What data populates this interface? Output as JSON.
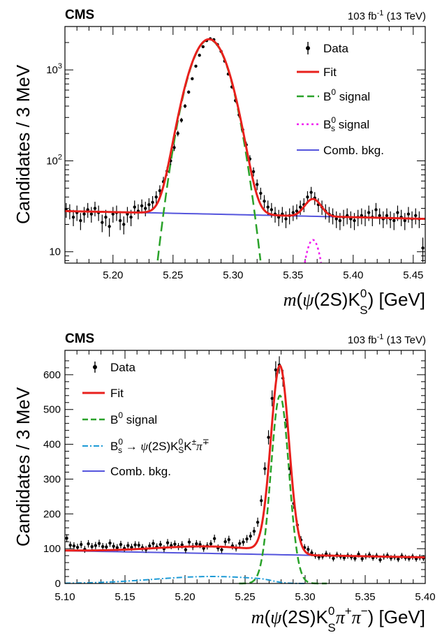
{
  "chart_data": [
    {
      "type": "line",
      "yscale": "log",
      "experiment": "CMS",
      "lumi": {
        "value": "103",
        "unit": "fb",
        "exp": "-1",
        "energy": "(13 TeV)"
      },
      "ylabel": "Candidates / 3 MeV",
      "xlabel": {
        "m": "m",
        "open": "(",
        "psi": "ψ",
        "mid": "(2S)K",
        "sup": "0",
        "sub": "S",
        "close": ")",
        "unit": " [GeV]"
      },
      "xlim": [
        5.16,
        5.46
      ],
      "ylim": [
        7.5,
        3000
      ],
      "x_ticks": [
        "5.20",
        "5.25",
        "5.30",
        "5.35",
        "5.40",
        "5.45"
      ],
      "y_ticks": [
        {
          "value": 10,
          "label": "10",
          "sup": ""
        },
        {
          "value": 100,
          "label": "10",
          "sup": "2"
        },
        {
          "value": 1000,
          "label": "10",
          "sup": "3"
        }
      ],
      "legend": {
        "placement": "top-right",
        "data": "Data",
        "fit": "Fit",
        "b0_base": "B",
        "b0_sup": "0",
        "b0_rest": " signal",
        "bs_base": "B",
        "bs_sup": "0",
        "bs_sub": "s",
        "bs_rest": " signal",
        "comb": "Comb. bkg."
      },
      "colors": {
        "fit": "#e8201c",
        "b0": "#2aa22a",
        "bs": "#f01cf0",
        "comb": "#5555dd",
        "data": "#000000"
      },
      "model": {
        "bkg": {
          "a": 28,
          "b": -16.67,
          "x0": 5.16
        },
        "b0": {
          "amp": 2150,
          "mu": 5.28,
          "sigma": 0.0128
        },
        "bs": {
          "amp": 13.5,
          "mu": 5.3665,
          "sigma": 0.0063
        }
      },
      "data_points": [
        [
          5.161,
          29
        ],
        [
          5.164,
          28
        ],
        [
          5.167,
          24
        ],
        [
          5.17,
          27
        ],
        [
          5.173,
          22
        ],
        [
          5.176,
          26
        ],
        [
          5.179,
          29
        ],
        [
          5.182,
          26
        ],
        [
          5.185,
          30
        ],
        [
          5.188,
          27
        ],
        [
          5.191,
          21
        ],
        [
          5.194,
          24
        ],
        [
          5.197,
          19
        ],
        [
          5.2,
          26
        ],
        [
          5.203,
          27
        ],
        [
          5.206,
          22
        ],
        [
          5.209,
          20
        ],
        [
          5.212,
          26
        ],
        [
          5.215,
          24
        ],
        [
          5.218,
          31
        ],
        [
          5.221,
          28
        ],
        [
          5.224,
          32
        ],
        [
          5.227,
          30
        ],
        [
          5.23,
          33
        ],
        [
          5.233,
          35
        ],
        [
          5.236,
          40
        ],
        [
          5.239,
          47
        ],
        [
          5.242,
          59
        ],
        [
          5.245,
          77
        ],
        [
          5.248,
          100
        ],
        [
          5.251,
          140
        ],
        [
          5.254,
          200
        ],
        [
          5.257,
          280
        ],
        [
          5.26,
          400
        ],
        [
          5.263,
          570
        ],
        [
          5.266,
          800
        ],
        [
          5.269,
          1100
        ],
        [
          5.272,
          1450
        ],
        [
          5.275,
          1800
        ],
        [
          5.278,
          2100
        ],
        [
          5.281,
          2200
        ],
        [
          5.284,
          2150
        ],
        [
          5.287,
          1900
        ],
        [
          5.29,
          1600
        ],
        [
          5.293,
          1250
        ],
        [
          5.296,
          900
        ],
        [
          5.299,
          650
        ],
        [
          5.302,
          460
        ],
        [
          5.305,
          320
        ],
        [
          5.308,
          220
        ],
        [
          5.311,
          150
        ],
        [
          5.314,
          105
        ],
        [
          5.317,
          76
        ],
        [
          5.32,
          55
        ],
        [
          5.323,
          44
        ],
        [
          5.326,
          36
        ],
        [
          5.329,
          31
        ],
        [
          5.332,
          29
        ],
        [
          5.335,
          26
        ],
        [
          5.338,
          24
        ],
        [
          5.341,
          26
        ],
        [
          5.344,
          23
        ],
        [
          5.347,
          25
        ],
        [
          5.35,
          27
        ],
        [
          5.353,
          28
        ],
        [
          5.356,
          31
        ],
        [
          5.359,
          33
        ],
        [
          5.362,
          40
        ],
        [
          5.365,
          45
        ],
        [
          5.368,
          39
        ],
        [
          5.371,
          33
        ],
        [
          5.374,
          31
        ],
        [
          5.377,
          28
        ],
        [
          5.38,
          26
        ],
        [
          5.383,
          25
        ],
        [
          5.386,
          23
        ],
        [
          5.389,
          22
        ],
        [
          5.392,
          24
        ],
        [
          5.395,
          25
        ],
        [
          5.398,
          23
        ],
        [
          5.401,
          22
        ],
        [
          5.404,
          24
        ],
        [
          5.407,
          25
        ],
        [
          5.41,
          24
        ],
        [
          5.413,
          27
        ],
        [
          5.416,
          24
        ],
        [
          5.419,
          29
        ],
        [
          5.422,
          25
        ],
        [
          5.425,
          23
        ],
        [
          5.428,
          25
        ],
        [
          5.431,
          23
        ],
        [
          5.434,
          22
        ],
        [
          5.437,
          27
        ],
        [
          5.44,
          24
        ],
        [
          5.443,
          22
        ],
        [
          5.446,
          26
        ],
        [
          5.449,
          23
        ],
        [
          5.452,
          25
        ],
        [
          5.455,
          23
        ],
        [
          5.458,
          11
        ]
      ]
    },
    {
      "type": "line",
      "yscale": "linear",
      "experiment": "CMS",
      "lumi": {
        "value": "103",
        "unit": "fb",
        "exp": "-1",
        "energy": "(13 TeV)"
      },
      "ylabel": "Candidates / 3 MeV",
      "xlabel": {
        "m": "m",
        "open": "(",
        "psi": "ψ",
        "mid": "(2S)K",
        "sup": "0",
        "sub": "S",
        "tail": "π",
        "tail_sup1": "+",
        "tail2": "π",
        "tail_sup2": "−",
        "close": ")",
        "unit": " [GeV]"
      },
      "xlim": [
        5.1,
        5.4
      ],
      "ylim": [
        0,
        670
      ],
      "x_ticks": [
        "5.10",
        "5.15",
        "5.20",
        "5.25",
        "5.30",
        "5.35",
        "5.40"
      ],
      "y_ticks": [
        {
          "value": 0,
          "label": "0"
        },
        {
          "value": 100,
          "label": "100"
        },
        {
          "value": 200,
          "label": "200"
        },
        {
          "value": 300,
          "label": "300"
        },
        {
          "value": 400,
          "label": "400"
        },
        {
          "value": 500,
          "label": "500"
        },
        {
          "value": 600,
          "label": "600"
        }
      ],
      "legend": {
        "placement": "top-left",
        "data": "Data",
        "fit": "Fit",
        "b0_base": "B",
        "b0_sup": "0",
        "b0_rest": " signal",
        "bs_base": "B",
        "bs_sup": "0",
        "bs_sub": "s",
        "bs_rest": " → ",
        "bs_psi": "ψ",
        "bs_mid": "(2S)K",
        "bs_k_sup": "0",
        "bs_k_sub": "S",
        "bs_kk": "K",
        "bs_kk_sup": "±",
        "bs_pi": "π",
        "bs_pi_sup": "∓",
        "comb": "Comb. bkg."
      },
      "colors": {
        "fit": "#e8201c",
        "b0": "#2aa22a",
        "bs": "#1c9ad6",
        "comb": "#5555dd",
        "data": "#000000"
      },
      "model": {
        "bkg": {
          "a": 94,
          "b": -63.3,
          "x0": 5.1
        },
        "b0": {
          "amp": 540,
          "mu": 5.279,
          "sigma": 0.0075
        },
        "bs": {
          "amp": 20,
          "mu": 5.222,
          "sigma": 0.048,
          "cut": 5.262,
          "fall": 0.012
        }
      },
      "data_points": [
        [
          5.1015,
          130
        ],
        [
          5.1045,
          110
        ],
        [
          5.1075,
          108
        ],
        [
          5.1105,
          104
        ],
        [
          5.1135,
          112
        ],
        [
          5.1165,
          98
        ],
        [
          5.1195,
          114
        ],
        [
          5.1225,
          106
        ],
        [
          5.1255,
          109
        ],
        [
          5.1285,
          115
        ],
        [
          5.1315,
          106
        ],
        [
          5.1345,
          105
        ],
        [
          5.1375,
          116
        ],
        [
          5.1405,
          107
        ],
        [
          5.1435,
          103
        ],
        [
          5.1465,
          112
        ],
        [
          5.1495,
          101
        ],
        [
          5.1525,
          109
        ],
        [
          5.1555,
          104
        ],
        [
          5.1585,
          111
        ],
        [
          5.1615,
          110
        ],
        [
          5.1645,
          103
        ],
        [
          5.1675,
          98
        ],
        [
          5.1705,
          108
        ],
        [
          5.1735,
          115
        ],
        [
          5.1765,
          105
        ],
        [
          5.1795,
          112
        ],
        [
          5.1825,
          100
        ],
        [
          5.1855,
          117
        ],
        [
          5.1885,
          109
        ],
        [
          5.1915,
          113
        ],
        [
          5.1945,
          106
        ],
        [
          5.1975,
          111
        ],
        [
          5.2005,
          97
        ],
        [
          5.2035,
          119
        ],
        [
          5.2065,
          106
        ],
        [
          5.2095,
          114
        ],
        [
          5.2125,
          112
        ],
        [
          5.2155,
          101
        ],
        [
          5.2185,
          108
        ],
        [
          5.2215,
          114
        ],
        [
          5.2245,
          129
        ],
        [
          5.2275,
          102
        ],
        [
          5.2305,
          97
        ],
        [
          5.2335,
          120
        ],
        [
          5.2365,
          126
        ],
        [
          5.2395,
          108
        ],
        [
          5.2425,
          102
        ],
        [
          5.2455,
          115
        ],
        [
          5.2485,
          119
        ],
        [
          5.2515,
          128
        ],
        [
          5.2545,
          136
        ],
        [
          5.2575,
          150
        ],
        [
          5.2605,
          176
        ],
        [
          5.2635,
          238
        ],
        [
          5.2665,
          330
        ],
        [
          5.2695,
          420
        ],
        [
          5.2725,
          532
        ],
        [
          5.2755,
          614
        ],
        [
          5.2785,
          628
        ],
        [
          5.2815,
          590
        ],
        [
          5.2845,
          470
        ],
        [
          5.2875,
          330
        ],
        [
          5.2905,
          230
        ],
        [
          5.2935,
          168
        ],
        [
          5.2965,
          125
        ],
        [
          5.2995,
          103
        ],
        [
          5.3025,
          98
        ],
        [
          5.3055,
          88
        ],
        [
          5.3085,
          80
        ],
        [
          5.3115,
          76
        ],
        [
          5.3145,
          78
        ],
        [
          5.3175,
          85
        ],
        [
          5.3205,
          80
        ],
        [
          5.3235,
          72
        ],
        [
          5.3265,
          82
        ],
        [
          5.3295,
          78
        ],
        [
          5.3325,
          74
        ],
        [
          5.3355,
          80
        ],
        [
          5.3385,
          76
        ],
        [
          5.3415,
          72
        ],
        [
          5.3445,
          84
        ],
        [
          5.3475,
          71
        ],
        [
          5.3505,
          78
        ],
        [
          5.3535,
          82
        ],
        [
          5.3565,
          74
        ],
        [
          5.3595,
          79
        ],
        [
          5.3625,
          68
        ],
        [
          5.3655,
          77
        ],
        [
          5.3685,
          80
        ],
        [
          5.3715,
          73
        ],
        [
          5.3745,
          76
        ],
        [
          5.3775,
          70
        ],
        [
          5.3805,
          79
        ],
        [
          5.3835,
          74
        ],
        [
          5.3865,
          72
        ],
        [
          5.3895,
          77
        ],
        [
          5.3925,
          71
        ],
        [
          5.3955,
          75
        ],
        [
          5.3985,
          73
        ]
      ]
    }
  ]
}
